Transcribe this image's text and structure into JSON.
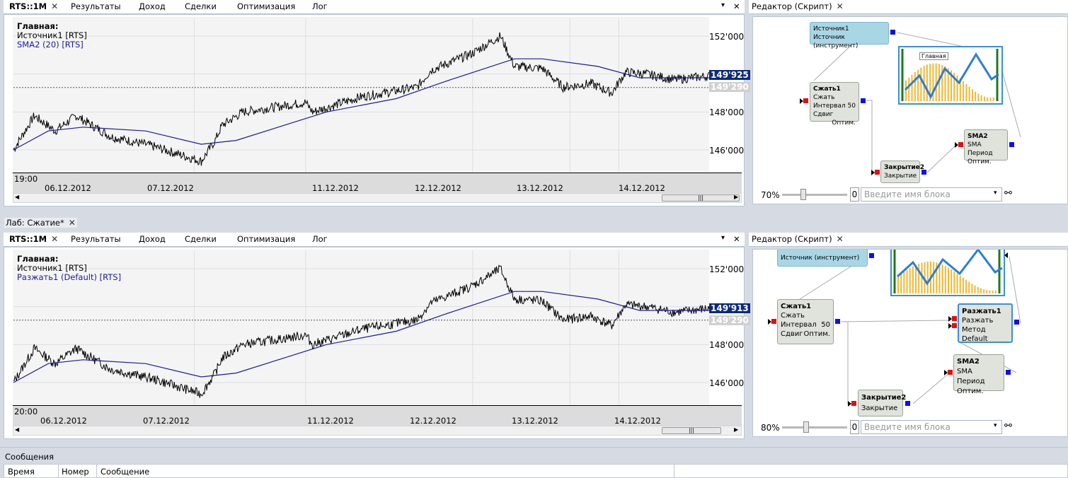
{
  "top": {
    "tabs": [
      "RTS::1M",
      "Результаты",
      "Доход",
      "Сделки",
      "Оптимизация",
      "Лог"
    ],
    "legend": {
      "title": "Главная:",
      "line1": "Источник1 [RTS]",
      "line2": "SMA2 (20) [RTS]"
    },
    "yticks": [
      "152'000",
      "148'000",
      "146'000"
    ],
    "price_last": "149'925",
    "price_dash": "149'290",
    "time": "19:00",
    "dates": [
      "06.12.2012",
      "07.12.2012",
      "11.12.2012",
      "12.12.2012",
      "13.12.2012",
      "14.12.2012"
    ],
    "editor": {
      "title": "Редактор (Скрипт)",
      "zoom": "70%",
      "zoomval": "0",
      "search": "Введите имя блока",
      "src": {
        "t": "Источник1",
        "s": "Источник (инструмент)"
      },
      "compress": {
        "t": "Сжать1",
        "a": "Сжать",
        "b": "Интервал",
        "bv": "50",
        "c": "Сдвиг",
        "cv": "Оптим."
      },
      "close": {
        "t": "Закрытие2",
        "a": "Закрытие"
      },
      "sma": {
        "t": "SMA2",
        "a": "SMA",
        "b": "Период Оптим."
      },
      "main": "Главная"
    }
  },
  "lab": {
    "title": "Лаб: Сжатие*"
  },
  "bottom": {
    "tabs": [
      "RTS::1M",
      "Результаты",
      "Доход",
      "Сделки",
      "Оптимизация",
      "Лог"
    ],
    "legend": {
      "title": "Главная:",
      "line1": "Источник1 [RTS]",
      "line2": "Разжать1 (Default) [RTS]"
    },
    "yticks": [
      "152'000",
      "148'000",
      "146'000"
    ],
    "price_last": "149'913",
    "price_dash": "149'290",
    "time": "20:00",
    "dates": [
      "06.12.2012",
      "07.12.2012",
      "11.12.2012",
      "12.12.2012",
      "13.12.2012",
      "14.12.2012"
    ],
    "editor": {
      "title": "Редактор (Скрипт)",
      "zoom": "80%",
      "zoomval": "0",
      "search": "Введите имя блока",
      "src": {
        "s": "Источник (инструмент)"
      },
      "compress": {
        "t": "Сжать1",
        "a": "Сжать",
        "b": "Интервал",
        "bv": "50",
        "c": "Сдвиг",
        "cv": "Оптим."
      },
      "decompress": {
        "t": "Разжать1",
        "a": "Разжать",
        "b": "Метод Default"
      },
      "close": {
        "t": "Закрытие2",
        "a": "Закрытие"
      },
      "sma": {
        "t": "SMA2",
        "a": "SMA",
        "b": "Период Оптим."
      }
    }
  },
  "messages": {
    "title": "Сообщения",
    "cols": [
      "Время",
      "Номер",
      "Сообщение"
    ]
  },
  "colors": {
    "sma": "#1a1aa0",
    "price": "#000000",
    "accent": "#0b2a7a"
  }
}
